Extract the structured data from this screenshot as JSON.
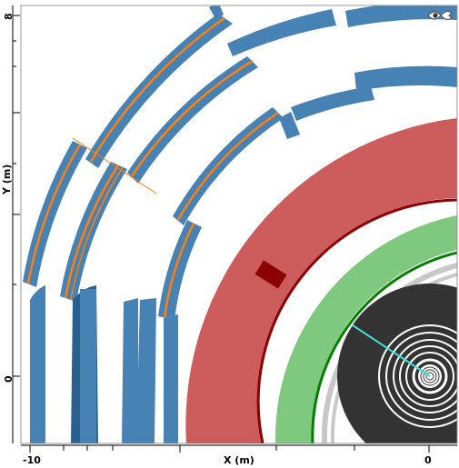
{
  "axes": {
    "x_title": "X (m)",
    "y_title": "Y (m)",
    "x_ticks": [
      "-10",
      "0"
    ],
    "y_ticks": [
      "8",
      "0"
    ]
  },
  "colors": {
    "barrel_muon": "#4682b4",
    "barrel_muon_dark": "#2b5f8f",
    "muon_hit": "#ff7f0e",
    "hcal": "#cd5c5c",
    "hcal_edge": "#8b0000",
    "hcal_hit": "#8b0000",
    "solenoid": "#ffffff",
    "ecal": "#7fc97f",
    "ecal_edge": "#007f00",
    "tracker_outer": "#c8c8c8",
    "tracker": "#333333",
    "track": "#40e0d0"
  },
  "logo": {
    "name": "eye-fish-logo-icon"
  }
}
